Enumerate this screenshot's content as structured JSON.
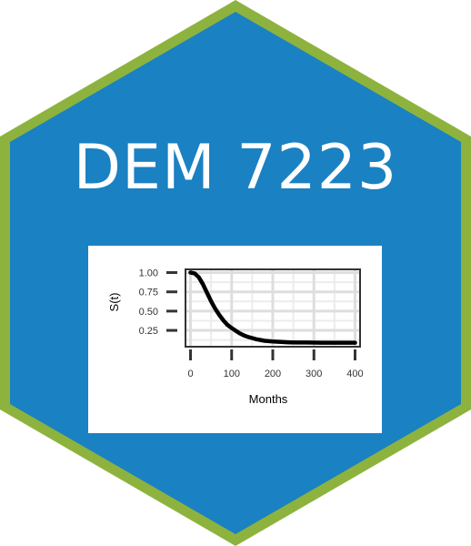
{
  "badge": {
    "title": "DEM 7223",
    "colors": {
      "border": "#8db33e",
      "fill": "#1a81c2",
      "text": "#ffffff",
      "card": "#ffffff"
    }
  },
  "chart_data": {
    "type": "line",
    "xlabel": "Months",
    "ylabel": "S(t)",
    "xlim": [
      -10,
      410
    ],
    "ylim": [
      0.05,
      1.03
    ],
    "x_ticks": [
      0,
      100,
      200,
      300,
      400
    ],
    "y_ticks": [
      0.25,
      0.5,
      0.75,
      1.0
    ],
    "x_tick_labels": [
      "0",
      "100",
      "200",
      "300",
      "400"
    ],
    "y_tick_labels": [
      "0.25",
      "0.50",
      "0.75",
      "1.00"
    ],
    "grid": true,
    "series": [
      {
        "color": "#000000",
        "x": [
          0,
          10,
          20,
          30,
          40,
          50,
          60,
          70,
          80,
          90,
          100,
          110,
          120,
          130,
          140,
          150,
          160,
          170,
          180,
          190,
          200,
          220,
          240,
          260,
          280,
          300,
          320,
          340,
          360,
          380,
          400
        ],
        "y": [
          1.0,
          0.99,
          0.94,
          0.85,
          0.74,
          0.63,
          0.53,
          0.45,
          0.38,
          0.32,
          0.28,
          0.245,
          0.21,
          0.185,
          0.165,
          0.15,
          0.135,
          0.125,
          0.115,
          0.11,
          0.105,
          0.1,
          0.095,
          0.093,
          0.092,
          0.091,
          0.09,
          0.09,
          0.09,
          0.09,
          0.09
        ]
      }
    ]
  }
}
